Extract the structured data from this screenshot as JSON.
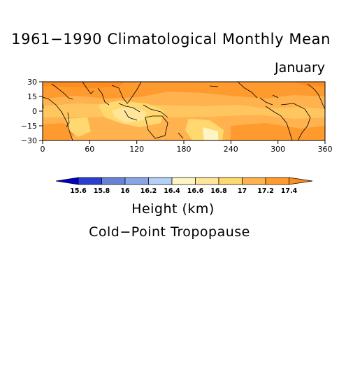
{
  "title": "1961−1990 Climatological Monthly Mean",
  "subtitle": "January",
  "units_label": "Height (km)",
  "caption": "Cold−Point Tropopause",
  "map": {
    "lat_ticks": [
      "30",
      "15",
      "0",
      "−15",
      "−30"
    ],
    "lon_ticks": [
      "0",
      "60",
      "120",
      "180",
      "240",
      "300",
      "360"
    ],
    "lon_range": [
      0,
      360
    ],
    "lat_range": [
      -30,
      30
    ]
  },
  "colorbar": {
    "labels": [
      "15.6",
      "15.8",
      "16",
      "16.2",
      "16.4",
      "16.6",
      "16.8",
      "17",
      "17.2",
      "17.4"
    ],
    "colors": [
      "#0000c8",
      "#2a3fd0",
      "#6a82d6",
      "#8aa4e6",
      "#b4d0f6",
      "#fff4c4",
      "#ffe69a",
      "#ffd870",
      "#ffb24e",
      "#ff9a2e",
      "#ff8c1e"
    ]
  }
}
